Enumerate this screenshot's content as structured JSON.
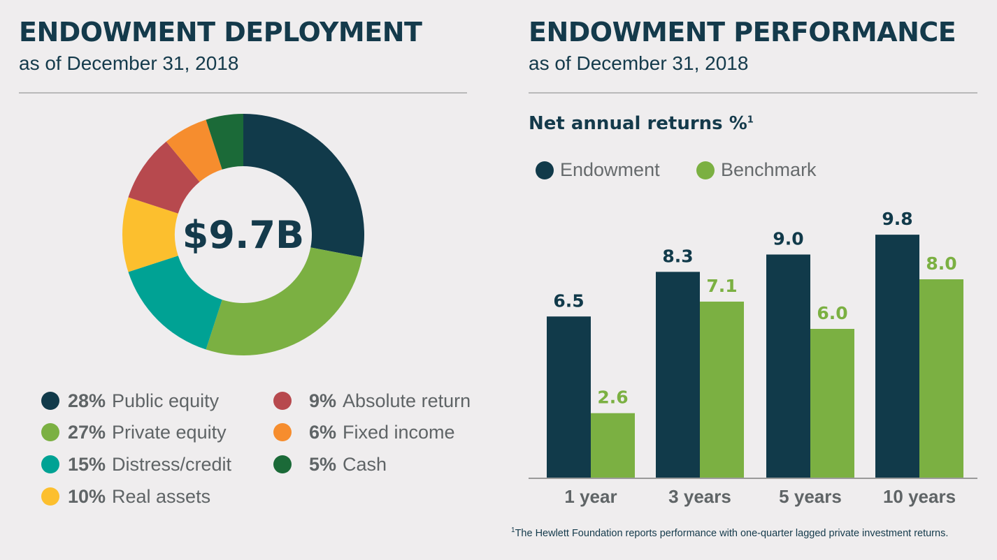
{
  "left": {
    "title": "ENDOWMENT DEPLOYMENT",
    "subtitle": "as of December 31, 2018"
  },
  "right": {
    "title": "ENDOWMENT PERFORMANCE",
    "subtitle": "as of December 31, 2018",
    "chart_title": "Net annual returns %",
    "chart_title_note": "1",
    "footnote_mark": "1",
    "footnote": "The Hewlett Foundation reports performance with one-quarter lagged private investment returns."
  },
  "chart_data": [
    {
      "type": "pie",
      "donut": true,
      "title": "",
      "center_label": "$9.7B",
      "legend_placement": "bottom",
      "slices": [
        {
          "label": "Public equity",
          "pct_text": "28%",
          "value": 28,
          "color": "#113a4a"
        },
        {
          "label": "Private equity",
          "pct_text": "27%",
          "value": 27,
          "color": "#7bb042"
        },
        {
          "label": "Distress/credit",
          "pct_text": "15%",
          "value": 15,
          "color": "#00a294"
        },
        {
          "label": "Real assets",
          "pct_text": "10%",
          "value": 10,
          "color": "#fcbf2e"
        },
        {
          "label": "Absolute return",
          "pct_text": "9%",
          "value": 9,
          "color": "#b7494e"
        },
        {
          "label": "Fixed income",
          "pct_text": "6%",
          "value": 6,
          "color": "#f68d2e"
        },
        {
          "label": "Cash",
          "pct_text": "5%",
          "value": 5,
          "color": "#1b6a38"
        }
      ]
    },
    {
      "type": "bar",
      "title": "Net annual returns %",
      "xlabel": "",
      "ylabel": "",
      "ylim": [
        0,
        10.5
      ],
      "grid": false,
      "legend_placement": "top-left",
      "categories": [
        "1 year",
        "3 years",
        "5 years",
        "10 years"
      ],
      "series": [
        {
          "name": "Endowment",
          "color": "#113a4a",
          "values": [
            6.5,
            8.3,
            9.0,
            9.8
          ],
          "labels": [
            "6.5",
            "8.3",
            "9.0",
            "9.8"
          ]
        },
        {
          "name": "Benchmark",
          "color": "#7bb042",
          "values": [
            2.6,
            7.1,
            6.0,
            8.0
          ],
          "labels": [
            "2.6",
            "7.1",
            "6.0",
            "8.0"
          ]
        }
      ]
    }
  ]
}
